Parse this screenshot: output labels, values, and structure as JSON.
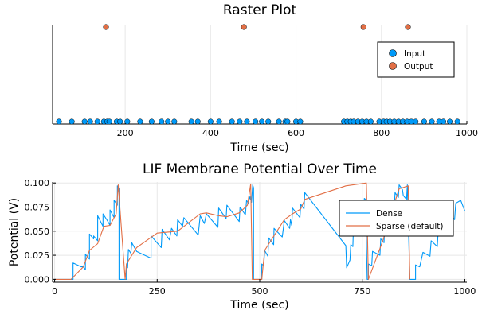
{
  "chart_data": [
    {
      "type": "scatter",
      "title": "Raster Plot",
      "xlabel": "Time (sec)",
      "ylabel": "",
      "xlim": [
        30,
        1000
      ],
      "xticks": [
        200,
        400,
        600,
        800,
        1000
      ],
      "legend_position": "top-right",
      "grid": true,
      "series": [
        {
          "name": "Input",
          "color": "#009af9",
          "row": 0,
          "x": [
            45,
            75,
            105,
            118,
            135,
            150,
            158,
            163,
            180,
            188,
            205,
            235,
            262,
            285,
            300,
            315,
            355,
            370,
            400,
            420,
            450,
            468,
            485,
            505,
            520,
            535,
            560,
            575,
            580,
            600,
            610,
            712,
            720,
            728,
            735,
            745,
            755,
            765,
            775,
            795,
            805,
            812,
            820,
            830,
            840,
            850,
            860,
            870,
            880,
            900,
            918,
            935,
            945,
            960,
            978
          ]
        },
        {
          "name": "Output",
          "color": "#e26f46",
          "row": 1,
          "x": [
            155,
            478,
            758,
            862
          ]
        }
      ]
    },
    {
      "type": "line",
      "title": "LIF Membrane Potential Over Time",
      "xlabel": "Time (sec)",
      "ylabel": "Potential (V)",
      "xlim": [
        -5,
        1005
      ],
      "ylim": [
        -0.003,
        0.101
      ],
      "xticks": [
        0,
        250,
        500,
        750,
        1000
      ],
      "yticks": [
        0.0,
        0.025,
        0.05,
        0.075,
        0.1
      ],
      "ytick_labels": [
        "0.000",
        "0.025",
        "0.050",
        "0.075",
        "0.100"
      ],
      "legend_position": "top-right",
      "grid": true,
      "series": [
        {
          "name": "Dense",
          "color": "#009af9",
          "points": [
            [
              0,
              0
            ],
            [
              38,
              0
            ],
            [
              45,
              0
            ],
            [
              45,
              0.017
            ],
            [
              65,
              0.013
            ],
            [
              70,
              0.013
            ],
            [
              75,
              0.01
            ],
            [
              75,
              0.026
            ],
            [
              85,
              0.021
            ],
            [
              85,
              0.047
            ],
            [
              95,
              0.042
            ],
            [
              95,
              0.045
            ],
            [
              105,
              0.04
            ],
            [
              105,
              0.066
            ],
            [
              118,
              0.055
            ],
            [
              118,
              0.068
            ],
            [
              130,
              0.06
            ],
            [
              135,
              0.056
            ],
            [
              135,
              0.072
            ],
            [
              145,
              0.064
            ],
            [
              145,
              0.082
            ],
            [
              150,
              0.079
            ],
            [
              153,
              0.077
            ],
            [
              153,
              0.097
            ],
            [
              157,
              0.094
            ],
            [
              157,
              0
            ],
            [
              175,
              0
            ],
            [
              175,
              0.015
            ],
            [
              178,
              0.012
            ],
            [
              180,
              0.031
            ],
            [
              186,
              0.027
            ],
            [
              188,
              0.038
            ],
            [
              200,
              0.029
            ],
            [
              210,
              0.027
            ],
            [
              235,
              0.022
            ],
            [
              235,
              0.045
            ],
            [
              260,
              0.033
            ],
            [
              262,
              0.052
            ],
            [
              280,
              0.041
            ],
            [
              285,
              0.053
            ],
            [
              298,
              0.045
            ],
            [
              300,
              0.062
            ],
            [
              312,
              0.055
            ],
            [
              315,
              0.064
            ],
            [
              350,
              0.046
            ],
            [
              355,
              0.066
            ],
            [
              365,
              0.058
            ],
            [
              370,
              0.068
            ],
            [
              398,
              0.054
            ],
            [
              400,
              0.074
            ],
            [
              418,
              0.063
            ],
            [
              420,
              0.077
            ],
            [
              450,
              0.06
            ],
            [
              452,
              0.075
            ],
            [
              465,
              0.067
            ],
            [
              468,
              0.082
            ],
            [
              472,
              0.079
            ],
            [
              475,
              0.086
            ],
            [
              477,
              0.083
            ],
            [
              478,
              0.086
            ],
            [
              480,
              0.08
            ],
            [
              483,
              0.098
            ],
            [
              485,
              0.095
            ],
            [
              485,
              0
            ],
            [
              505,
              0
            ],
            [
              505,
              0.016
            ],
            [
              510,
              0.014
            ],
            [
              512,
              0.03
            ],
            [
              520,
              0.024
            ],
            [
              522,
              0.043
            ],
            [
              534,
              0.036
            ],
            [
              535,
              0.053
            ],
            [
              555,
              0.044
            ],
            [
              560,
              0.061
            ],
            [
              573,
              0.053
            ],
            [
              575,
              0.062
            ],
            [
              578,
              0.056
            ],
            [
              580,
              0.074
            ],
            [
              598,
              0.064
            ],
            [
              600,
              0.078
            ],
            [
              608,
              0.073
            ],
            [
              610,
              0.09
            ],
            [
              710,
              0.035
            ],
            [
              712,
              0.012
            ],
            [
              720,
              0.02
            ],
            [
              722,
              0.036
            ],
            [
              727,
              0.034
            ],
            [
              728,
              0.047
            ],
            [
              733,
              0.045
            ],
            [
              735,
              0.062
            ],
            [
              743,
              0.055
            ],
            [
              745,
              0.069
            ],
            [
              752,
              0.065
            ],
            [
              755,
              0.084
            ],
            [
              758,
              0.083
            ],
            [
              762,
              0
            ],
            [
              765,
              0
            ],
            [
              765,
              0.016
            ],
            [
              773,
              0.014
            ],
            [
              775,
              0.029
            ],
            [
              793,
              0.025
            ],
            [
              795,
              0.042
            ],
            [
              803,
              0.038
            ],
            [
              805,
              0.056
            ],
            [
              810,
              0.053
            ],
            [
              812,
              0.066
            ],
            [
              818,
              0.063
            ],
            [
              820,
              0.079
            ],
            [
              828,
              0.074
            ],
            [
              830,
              0.09
            ],
            [
              838,
              0.085
            ],
            [
              840,
              0.098
            ],
            [
              848,
              0.093
            ],
            [
              850,
              0.087
            ],
            [
              858,
              0.083
            ],
            [
              860,
              0.098
            ],
            [
              866,
              0
            ],
            [
              880,
              0
            ],
            [
              880,
              0.015
            ],
            [
              890,
              0.013
            ],
            [
              898,
              0.028
            ],
            [
              915,
              0.024
            ],
            [
              918,
              0.04
            ],
            [
              933,
              0.034
            ],
            [
              935,
              0.05
            ],
            [
              943,
              0.045
            ],
            [
              945,
              0.059
            ],
            [
              957,
              0.052
            ],
            [
              960,
              0.07
            ],
            [
              975,
              0.062
            ],
            [
              978,
              0.079
            ],
            [
              990,
              0.082
            ],
            [
              1000,
              0.071
            ]
          ]
        },
        {
          "name": "Sparse (default)",
          "color": "#e26f46",
          "points": [
            [
              0,
              0
            ],
            [
              40,
              0
            ],
            [
              70,
              0.013
            ],
            [
              85,
              0.03
            ],
            [
              105,
              0.037
            ],
            [
              120,
              0.055
            ],
            [
              135,
              0.056
            ],
            [
              150,
              0.068
            ],
            [
              155,
              0.098
            ],
            [
              172,
              0
            ],
            [
              175,
              0.016
            ],
            [
              200,
              0.033
            ],
            [
              250,
              0.048
            ],
            [
              300,
              0.05
            ],
            [
              355,
              0.068
            ],
            [
              370,
              0.069
            ],
            [
              400,
              0.066
            ],
            [
              420,
              0.065
            ],
            [
              450,
              0.069
            ],
            [
              470,
              0.077
            ],
            [
              478,
              0.099
            ],
            [
              482,
              0
            ],
            [
              505,
              0
            ],
            [
              512,
              0.03
            ],
            [
              560,
              0.062
            ],
            [
              580,
              0.068
            ],
            [
              600,
              0.073
            ],
            [
              610,
              0.083
            ],
            [
              710,
              0.097
            ],
            [
              760,
              0.1
            ],
            [
              765,
              0
            ],
            [
              800,
              0.04
            ],
            [
              820,
              0.068
            ],
            [
              840,
              0.094
            ],
            [
              862,
              0.097
            ],
            [
              866,
              0
            ]
          ]
        }
      ]
    }
  ]
}
